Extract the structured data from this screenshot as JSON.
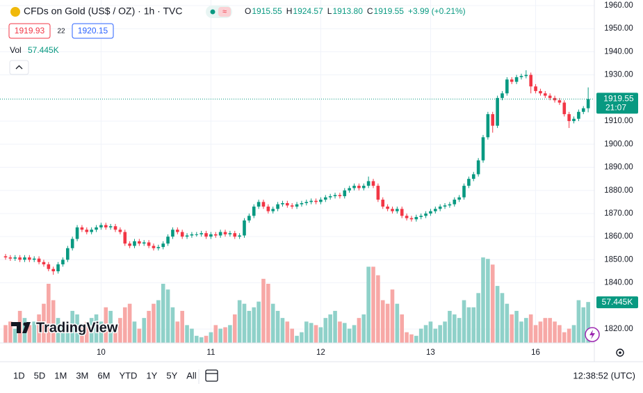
{
  "chart_data": {
    "type": "candlestick",
    "title": "CFDs on Gold (US$ / OZ) · 1h · TVC",
    "legend": [
      {
        "key": "O",
        "text": "1915.55"
      },
      {
        "key": "H",
        "text": "1924.57"
      },
      {
        "key": "L",
        "text": "1913.80"
      },
      {
        "key": "C",
        "text": "1919.55"
      }
    ],
    "change": "+3.99 (+0.21%)",
    "sell_price": "1919.93",
    "spread": "22",
    "buy_price": "1920.15",
    "volume_title": "Vol",
    "volume_label": "57.445K",
    "countdown": "21:07",
    "logo": "TradingView",
    "ranges": [
      "1D",
      "5D",
      "1M",
      "3M",
      "6M",
      "YTD",
      "1Y",
      "5Y",
      "All"
    ],
    "clock": "12:38:52 (UTC)",
    "up_color": "#089981",
    "down_color": "#f23645",
    "up_volume_color": "#8fd1c9",
    "down_volume_color": "#f7a8a6",
    "grid": true,
    "ylim": [
      1814,
      1962.4
    ],
    "yticks": [
      {
        "value": 1820,
        "label": "1820.00"
      },
      {
        "value": 1840,
        "label": "1840.00"
      },
      {
        "value": 1850,
        "label": "1850.00"
      },
      {
        "value": 1860,
        "label": "1860.00"
      },
      {
        "value": 1870,
        "label": "1870.00"
      },
      {
        "value": 1880,
        "label": "1880.00"
      },
      {
        "value": 1890,
        "label": "1890.00"
      },
      {
        "value": 1900,
        "label": "1900.00"
      },
      {
        "value": 1910,
        "label": "1910.00"
      },
      {
        "value": 1930,
        "label": "1930.00"
      },
      {
        "value": 1940,
        "label": "1940.00"
      },
      {
        "value": 1950,
        "label": "1950.00"
      },
      {
        "value": 1960,
        "label": "1960.00"
      }
    ],
    "volume_lim": [
      0,
      125000
    ],
    "categories": [
      null,
      null,
      null,
      null,
      null,
      null,
      null,
      null,
      null,
      null,
      null,
      null,
      null,
      null,
      null,
      null,
      null,
      null,
      null,
      null,
      "10",
      null,
      null,
      null,
      null,
      null,
      null,
      null,
      null,
      null,
      null,
      null,
      null,
      null,
      null,
      null,
      null,
      null,
      null,
      null,
      null,
      null,
      null,
      "11",
      null,
      null,
      null,
      null,
      null,
      null,
      null,
      null,
      null,
      null,
      null,
      null,
      null,
      null,
      null,
      null,
      null,
      null,
      null,
      null,
      null,
      null,
      "12",
      null,
      null,
      null,
      null,
      null,
      null,
      null,
      null,
      null,
      null,
      null,
      null,
      null,
      null,
      null,
      null,
      null,
      null,
      null,
      null,
      null,
      null,
      "13",
      null,
      null,
      null,
      null,
      null,
      null,
      null,
      null,
      null,
      null,
      null,
      null,
      null,
      null,
      null,
      null,
      null,
      null,
      null,
      null,
      null,
      "16",
      null,
      null,
      null,
      null,
      null,
      null,
      null,
      null,
      null,
      null,
      null
    ],
    "open": [
      1851.5,
      1851,
      1850.5,
      1851,
      1850,
      1851,
      1850,
      1850.5,
      1849,
      1848,
      1846,
      1845,
      1848,
      1850,
      1855,
      1859,
      1864,
      1863,
      1862,
      1863,
      1864,
      1865,
      1864,
      1864.5,
      1863,
      1862,
      1857,
      1856,
      1858,
      1857,
      1857.5,
      1856,
      1855,
      1855.5,
      1857,
      1860,
      1863,
      1862,
      1860,
      1860.5,
      1861,
      1861,
      1861.5,
      1860,
      1861,
      1860.5,
      1862,
      1861,
      1861.5,
      1860,
      1860.5,
      1867,
      1869,
      1873,
      1875,
      1873,
      1871,
      1872,
      1874,
      1874.5,
      1873.5,
      1873,
      1874,
      1874.5,
      1875,
      1875.5,
      1875,
      1876,
      1877,
      1877.5,
      1878,
      1877.5,
      1880,
      1881,
      1882,
      1881,
      1882,
      1884,
      1882,
      1876,
      1873,
      1872,
      1871,
      1872,
      1869,
      1868,
      1867.5,
      1868.5,
      1869,
      1870,
      1871,
      1872,
      1873,
      1873.5,
      1874,
      1876,
      1877,
      1882,
      1885,
      1887,
      1893,
      1903,
      1913,
      1908,
      1920,
      1922,
      1928,
      1927,
      1929,
      1929.5,
      1930,
      1925,
      1923,
      1922,
      1921,
      1920,
      1919,
      1918,
      1913,
      1910,
      1911,
      1914,
      1915.55
    ],
    "high": [
      1852.5,
      1852,
      1852,
      1852,
      1852,
      1852,
      1851.5,
      1851.5,
      1850,
      1849,
      1847,
      1849,
      1851,
      1856,
      1860,
      1865,
      1865,
      1864,
      1864,
      1865,
      1866,
      1866,
      1865.5,
      1865.5,
      1864,
      1863,
      1858,
      1859,
      1859,
      1858.5,
      1858.5,
      1857,
      1856.5,
      1858,
      1861,
      1864,
      1864,
      1863,
      1861.5,
      1862,
      1862,
      1862.5,
      1862.5,
      1862,
      1862,
      1863,
      1863,
      1862.5,
      1862.5,
      1861.5,
      1868,
      1870,
      1874,
      1876,
      1876,
      1874,
      1873,
      1875,
      1875.5,
      1875.5,
      1874.5,
      1875,
      1875.5,
      1876,
      1876.5,
      1876.5,
      1877,
      1878,
      1878.5,
      1879,
      1879,
      1881,
      1882,
      1883,
      1883,
      1883,
      1886,
      1885,
      1883,
      1877,
      1874,
      1873,
      1873,
      1873,
      1870,
      1869,
      1869.5,
      1870,
      1871,
      1872,
      1873,
      1874,
      1874.5,
      1875,
      1877,
      1878,
      1883,
      1886,
      1888,
      1894,
      1904,
      1914,
      1914,
      1921,
      1923,
      1929,
      1929,
      1930,
      1930.5,
      1932,
      1931,
      1926,
      1924,
      1923,
      1922,
      1921,
      1920,
      1919,
      1914,
      1912,
      1915,
      1916.5,
      1924.57
    ],
    "low": [
      1850,
      1849.5,
      1849.5,
      1849,
      1849,
      1849,
      1849,
      1848,
      1847,
      1845,
      1843.5,
      1844,
      1847,
      1849,
      1854,
      1858,
      1862,
      1861,
      1861,
      1862,
      1863,
      1863,
      1863,
      1862,
      1861,
      1856,
      1855,
      1855,
      1856,
      1856,
      1855,
      1854,
      1854,
      1854.5,
      1856,
      1859,
      1861,
      1859,
      1859,
      1859.5,
      1860,
      1860,
      1859,
      1859,
      1859.5,
      1859.5,
      1860,
      1860,
      1859,
      1859,
      1859.5,
      1866,
      1868,
      1872,
      1872,
      1870,
      1870,
      1871,
      1873,
      1872.5,
      1872,
      1872,
      1873,
      1873.5,
      1874,
      1874,
      1874,
      1875,
      1876,
      1876.5,
      1876.5,
      1876.5,
      1879,
      1880,
      1880,
      1880,
      1881,
      1881,
      1875,
      1872,
      1871,
      1870,
      1870,
      1868,
      1867,
      1866.5,
      1866.5,
      1867.5,
      1868,
      1869,
      1870,
      1871,
      1872,
      1872.5,
      1873,
      1875,
      1876,
      1881,
      1884,
      1886,
      1892,
      1902,
      1905,
      1907,
      1919,
      1921,
      1926,
      1926,
      1928,
      1928.5,
      1922,
      1922,
      1921,
      1920,
      1919,
      1918,
      1917,
      1912,
      1907,
      1909,
      1910,
      1913,
      1913.8
    ],
    "close": [
      1851,
      1850.5,
      1851,
      1850,
      1851,
      1850,
      1850.5,
      1849,
      1848,
      1846,
      1845,
      1848,
      1850,
      1855,
      1859,
      1864,
      1863,
      1862,
      1863,
      1864,
      1865,
      1864,
      1864.5,
      1863,
      1862,
      1857,
      1856,
      1858,
      1857,
      1857.5,
      1856,
      1855,
      1855.5,
      1857,
      1860,
      1863,
      1862,
      1860,
      1860.5,
      1861,
      1861,
      1861.5,
      1860,
      1861,
      1860.5,
      1862,
      1861,
      1861.5,
      1860,
      1860.5,
      1867,
      1869,
      1873,
      1875,
      1873,
      1871,
      1872,
      1874,
      1874.5,
      1873.5,
      1873,
      1874,
      1874.5,
      1875,
      1875.5,
      1875,
      1876,
      1877,
      1877.5,
      1878,
      1877.5,
      1880,
      1881,
      1882,
      1881,
      1882,
      1884,
      1882,
      1876,
      1873,
      1872,
      1871,
      1872,
      1869,
      1868,
      1867.5,
      1868.5,
      1869,
      1870,
      1871,
      1872,
      1873,
      1873.5,
      1874,
      1876,
      1877,
      1882,
      1885,
      1887,
      1893,
      1903,
      1913,
      1908,
      1920,
      1922,
      1928,
      1927,
      1929,
      1929.5,
      1930,
      1925,
      1923,
      1922,
      1921,
      1920,
      1919,
      1918,
      1913,
      1910,
      1911,
      1914,
      1915.55,
      1919.55
    ],
    "volume": [
      25000,
      30000,
      20000,
      45000,
      35000,
      25000,
      30000,
      40000,
      55000,
      83000,
      60000,
      35000,
      28000,
      30000,
      45000,
      40000,
      25000,
      30000,
      35000,
      40000,
      30000,
      50000,
      45000,
      25000,
      35000,
      50000,
      55000,
      30000,
      20000,
      35000,
      45000,
      55000,
      60000,
      83000,
      75000,
      50000,
      30000,
      45000,
      25000,
      20000,
      10000,
      8000,
      10000,
      15000,
      25000,
      20000,
      22000,
      25000,
      40000,
      60000,
      55000,
      45000,
      50000,
      58000,
      90000,
      83000,
      55000,
      45000,
      35000,
      30000,
      20000,
      10000,
      15000,
      30000,
      28000,
      25000,
      22000,
      35000,
      40000,
      45000,
      30000,
      28000,
      20000,
      25000,
      35000,
      40000,
      107000,
      107000,
      95000,
      60000,
      55000,
      75000,
      55000,
      40000,
      15000,
      12000,
      10000,
      20000,
      25000,
      30000,
      20000,
      25000,
      30000,
      45000,
      40000,
      35000,
      60000,
      50000,
      50000,
      70000,
      120000,
      118000,
      110000,
      80000,
      70000,
      55000,
      40000,
      45000,
      30000,
      35000,
      40000,
      25000,
      30000,
      35000,
      35000,
      30000,
      25000,
      15000,
      20000,
      25000,
      60000,
      50000,
      57445
    ]
  }
}
